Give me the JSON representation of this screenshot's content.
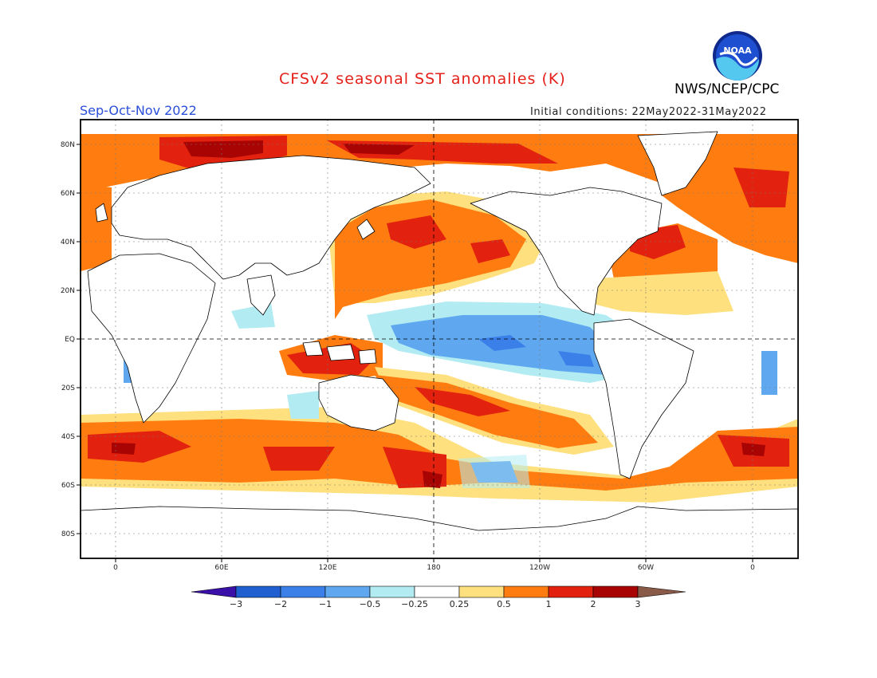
{
  "header": {
    "title": "CFSv2 seasonal SST anomalies (K)",
    "org": "NWS/NCEP/CPC",
    "season": "Sep-Oct-Nov 2022",
    "initial_conditions": "Initial conditions: 22May2022-31May2022"
  },
  "logo": {
    "text": "NOAA"
  },
  "axes": {
    "lat_labels": [
      "80N",
      "60N",
      "40N",
      "20N",
      "EQ",
      "20S",
      "40S",
      "60S",
      "80S"
    ],
    "lon_labels": [
      "0",
      "60E",
      "120E",
      "180",
      "120W",
      "60W",
      "0"
    ]
  },
  "colorbar": {
    "labels": [
      "-3",
      "-2",
      "-1",
      "-0.5",
      "-0.25",
      "0.25",
      "0.5",
      "1",
      "2",
      "3"
    ],
    "colors": [
      "#3a10a8",
      "#1f5fd0",
      "#3a80e8",
      "#5fa8f0",
      "#b2ecf2",
      "#ffffff",
      "#fee07f",
      "#ff7d10",
      "#e2220e",
      "#a80404",
      "#8a5a48"
    ]
  },
  "colors": {
    "title": "#e4201a",
    "season": "#2b4fd8",
    "pos1": "#fee07f",
    "pos2": "#ff7d10",
    "pos3": "#e2220e",
    "pos4": "#a80404",
    "neg1": "#b2ecf2",
    "neg2": "#5fa8f0",
    "neg3": "#3a80e8"
  }
}
